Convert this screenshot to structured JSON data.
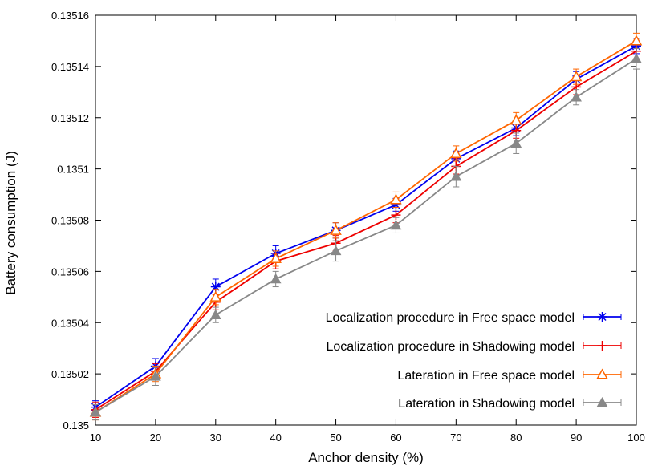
{
  "chart_data": {
    "type": "line",
    "title": "",
    "xlabel": "Anchor density (%)",
    "ylabel": "Battery consumption (J)",
    "x": [
      10,
      20,
      30,
      40,
      50,
      60,
      70,
      80,
      90,
      100
    ],
    "x_ticks": [
      "10",
      "20",
      "30",
      "40",
      "50",
      "60",
      "70",
      "80",
      "90",
      "100"
    ],
    "y_ticks": [
      "0.135",
      "0.13502",
      "0.13504",
      "0.13506",
      "0.13508",
      "0.1351",
      "0.13512",
      "0.13514",
      "0.13516"
    ],
    "xlim": [
      10,
      100
    ],
    "ylim": [
      0.135,
      0.13516
    ],
    "grid": false,
    "legend_position": "bottom-right",
    "series": [
      {
        "name": "Localization procedure in Free space model",
        "color": "#0000ee",
        "marker": "asterisk",
        "values": [
          0.135007,
          0.135023,
          0.135054,
          0.135067,
          0.135076,
          0.135086,
          0.135104,
          0.135116,
          0.135135,
          0.135148
        ],
        "error": [
          2.5e-06,
          3e-06,
          3e-06,
          3e-06,
          3e-06,
          2.5e-06,
          3e-06,
          3e-06,
          3e-06,
          3e-06
        ]
      },
      {
        "name": "Localization procedure in Shadowing model",
        "color": "#ee0000",
        "marker": "plus",
        "values": [
          0.135006,
          0.135021,
          0.135048,
          0.135064,
          0.135071,
          0.135082,
          0.135101,
          0.135115,
          0.135132,
          0.135146
        ],
        "error": [
          3e-06,
          3e-06,
          3e-06,
          3e-06,
          3e-06,
          3e-06,
          3e-06,
          3e-06,
          3e-06,
          3e-06
        ]
      },
      {
        "name": "Lateration in Free space model",
        "color": "#ff6600",
        "marker": "triangle-open",
        "values": [
          0.135005,
          0.13502,
          0.13505,
          0.135065,
          0.135076,
          0.135088,
          0.135106,
          0.135119,
          0.135136,
          0.13515
        ],
        "error": [
          3e-06,
          3e-06,
          3e-06,
          3e-06,
          3e-06,
          3e-06,
          3e-06,
          3e-06,
          3e-06,
          3e-06
        ]
      },
      {
        "name": "Lateration in Shadowing model",
        "color": "#888888",
        "marker": "triangle-filled",
        "values": [
          0.135005,
          0.135019,
          0.135043,
          0.135057,
          0.135068,
          0.135078,
          0.135097,
          0.13511,
          0.135128,
          0.135143
        ],
        "error": [
          3e-06,
          3.5e-06,
          3e-06,
          3e-06,
          4e-06,
          3e-06,
          4e-06,
          4e-06,
          3e-06,
          4e-06
        ]
      }
    ]
  }
}
